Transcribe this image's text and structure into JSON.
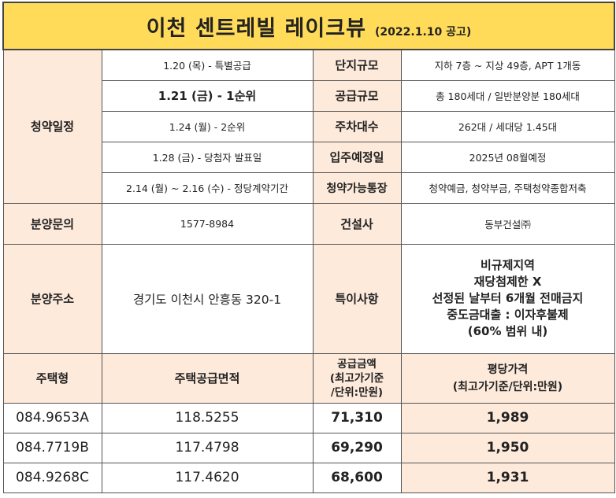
{
  "title": "이천 센트레빌 레이크뷰",
  "subtitle": "(2022.1.10 공고)",
  "labels": {
    "schedule": "청약일정",
    "scale": "단지규모",
    "supply_scale": "공급규모",
    "parking": "주차대수",
    "move_in": "입주예정일",
    "account": "청약가능통장",
    "inquiry": "분양문의",
    "builder": "건설사",
    "address": "분양주소",
    "special": "특이사항"
  },
  "schedule": [
    "1.20 (목) - 특별공급",
    "1.21 (금) - 1순위",
    "1.24 (월) - 2순위",
    "1.28 (금) - 당첨자 발표일",
    "2.14 (월) ~ 2.16 (수) - 정당계약기간"
  ],
  "values": {
    "scale": "지하 7층 ~ 지상 49층, APT 1개동",
    "supply_scale": "총 180세대 / 일반분양분 180세대",
    "parking": "262대 / 세대당 1.45대",
    "move_in": "2025년 08월예정",
    "account": "청약예금, 청약부금, 주택청약종합저축",
    "inquiry": "1577-8984",
    "builder": "동부건설㈜",
    "address": "경기도 이천시 안흥동 320-1",
    "special": [
      "비규제지역",
      "재당첨제한 X",
      "선정된 날부터 6개월 전매금지",
      "중도금대출 : 이자후불제",
      "(60% 범위 내)"
    ]
  },
  "price_table": {
    "headers": {
      "type": "주택형",
      "area": "주택공급면적",
      "price_lines": [
        "공급금액",
        "(최고가기준",
        "/단위:만원)"
      ],
      "pp_lines": [
        "평당가격",
        "(최고가기준/단위:만원)"
      ]
    },
    "rows": [
      {
        "type": "084.9653A",
        "area": "118.5255",
        "price": "71,310",
        "per_pyeong": "1,989"
      },
      {
        "type": "084.7719B",
        "area": "117.4798",
        "price": "69,290",
        "per_pyeong": "1,950"
      },
      {
        "type": "084.9268C",
        "area": "117.4620",
        "price": "68,600",
        "per_pyeong": "1,931"
      }
    ]
  },
  "colors": {
    "title_bg": "#ffdb59",
    "header_bg": "#fdeadb"
  }
}
